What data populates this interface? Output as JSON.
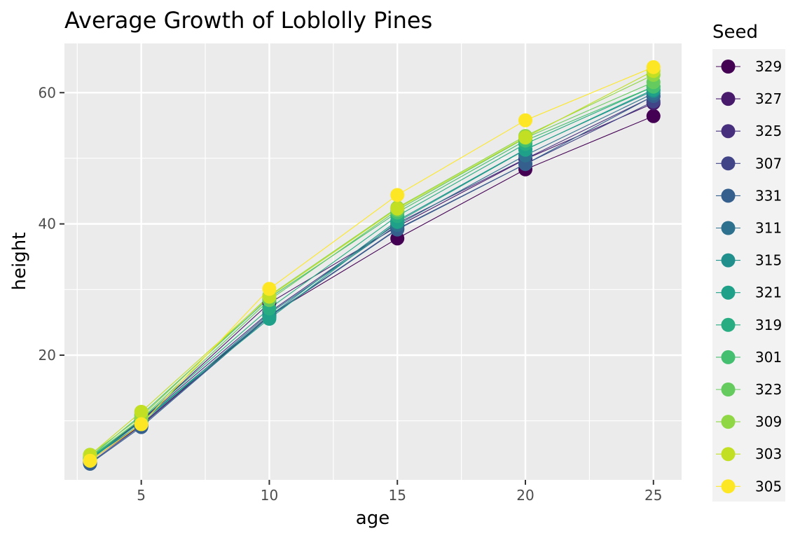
{
  "chart_data": {
    "type": "line",
    "title": "Average Growth of Loblolly Pines",
    "xlabel": "age",
    "ylabel": "height",
    "xlim": [
      2.0,
      26.1
    ],
    "ylim": [
      1.0,
      67.5
    ],
    "x_ticks": [
      5,
      10,
      15,
      20,
      25
    ],
    "y_ticks": [
      20,
      40,
      60
    ],
    "x_tick_labels": [
      "5",
      "10",
      "15",
      "20",
      "25"
    ],
    "y_tick_labels": [
      "20",
      "40",
      "60"
    ],
    "grid": true,
    "legend": {
      "title": "Seed",
      "placement": "right"
    },
    "x": [
      3,
      5,
      10,
      15,
      20,
      25
    ],
    "series": [
      {
        "name": "329",
        "color": "#440154",
        "values": [
          3.93,
          9.34,
          26.08,
          37.79,
          48.31,
          56.43
        ]
      },
      {
        "name": "327",
        "color": "#481A6C",
        "values": [
          4.12,
          10.05,
          27.93,
          39.61,
          49.86,
          58.39
        ]
      },
      {
        "name": "325",
        "color": "#472F7D",
        "values": [
          4.38,
          10.02,
          26.54,
          40.1,
          49.91,
          59.45
        ]
      },
      {
        "name": "307",
        "color": "#414487",
        "values": [
          3.59,
          9.26,
          25.92,
          39.24,
          49.13,
          58.66
        ]
      },
      {
        "name": "331",
        "color": "#35608D",
        "values": [
          3.46,
          9.05,
          25.85,
          39.15,
          49.12,
          59.49
        ]
      },
      {
        "name": "311",
        "color": "#2D718E",
        "values": [
          4.21,
          9.5,
          26.35,
          39.85,
          50.45,
          59.9
        ]
      },
      {
        "name": "315",
        "color": "#21908D",
        "values": [
          4.05,
          9.9,
          25.95,
          40.5,
          51.35,
          60.3
        ]
      },
      {
        "name": "321",
        "color": "#1FA088",
        "values": [
          4.25,
          9.83,
          25.55,
          40.3,
          51.3,
          60.5
        ]
      },
      {
        "name": "319",
        "color": "#27AD81",
        "values": [
          4.3,
          10.2,
          27.1,
          41.2,
          52.2,
          60.9
        ]
      },
      {
        "name": "301",
        "color": "#44BF70",
        "values": [
          4.51,
          10.89,
          28.72,
          41.74,
          52.7,
          60.92
        ]
      },
      {
        "name": "323",
        "color": "#65CB5E",
        "values": [
          4.45,
          10.3,
          28.4,
          42.1,
          53.1,
          61.6
        ]
      },
      {
        "name": "309",
        "color": "#8FD744",
        "values": [
          4.82,
          10.61,
          29.07,
          42.48,
          53.4,
          62.71
        ]
      },
      {
        "name": "303",
        "color": "#C2DF23",
        "values": [
          4.79,
          11.37,
          28.91,
          42.34,
          53.18,
          63.31
        ]
      },
      {
        "name": "305",
        "color": "#FDE725",
        "values": [
          3.91,
          9.48,
          30.1,
          44.41,
          55.79,
          63.89
        ]
      }
    ]
  }
}
